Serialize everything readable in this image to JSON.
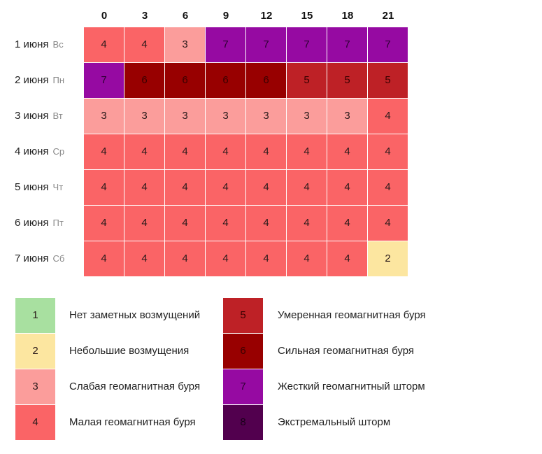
{
  "chart_data": {
    "type": "heatmap",
    "hours": [
      "0",
      "3",
      "6",
      "9",
      "12",
      "15",
      "18",
      "21"
    ],
    "rows": [
      {
        "date": "1 июня",
        "dow": "Вс",
        "values": [
          4,
          4,
          3,
          7,
          7,
          7,
          7,
          7
        ]
      },
      {
        "date": "2 июня",
        "dow": "Пн",
        "values": [
          7,
          6,
          6,
          6,
          6,
          5,
          5,
          5
        ]
      },
      {
        "date": "3 июня",
        "dow": "Вт",
        "values": [
          3,
          3,
          3,
          3,
          3,
          3,
          3,
          4
        ]
      },
      {
        "date": "4 июня",
        "dow": "Ср",
        "values": [
          4,
          4,
          4,
          4,
          4,
          4,
          4,
          4
        ]
      },
      {
        "date": "5 июня",
        "dow": "Чт",
        "values": [
          4,
          4,
          4,
          4,
          4,
          4,
          4,
          4
        ]
      },
      {
        "date": "6 июня",
        "dow": "Пт",
        "values": [
          4,
          4,
          4,
          4,
          4,
          4,
          4,
          4
        ]
      },
      {
        "date": "7 июня",
        "dow": "Сб",
        "values": [
          4,
          4,
          4,
          4,
          4,
          4,
          4,
          2
        ]
      }
    ],
    "colors": {
      "1": "#a8e0a0",
      "2": "#fce6a0",
      "3": "#fb9d9b",
      "4": "#fa6466",
      "5": "#be2126",
      "6": "#980000",
      "7": "#960aa2",
      "8": "#52004e"
    },
    "legend": [
      {
        "level": "1",
        "label": "Нет заметных возмущений"
      },
      {
        "level": "2",
        "label": "Небольшие возмущения"
      },
      {
        "level": "3",
        "label": "Слабая геомагнитная буря"
      },
      {
        "level": "4",
        "label": "Малая геомагнитная буря"
      },
      {
        "level": "5",
        "label": "Умеренная геомагнитная буря"
      },
      {
        "level": "6",
        "label": "Сильная геомагнитная буря"
      },
      {
        "level": "7",
        "label": "Жесткий геомагнитный шторм"
      },
      {
        "level": "8",
        "label": "Экстремальный шторм"
      }
    ]
  }
}
